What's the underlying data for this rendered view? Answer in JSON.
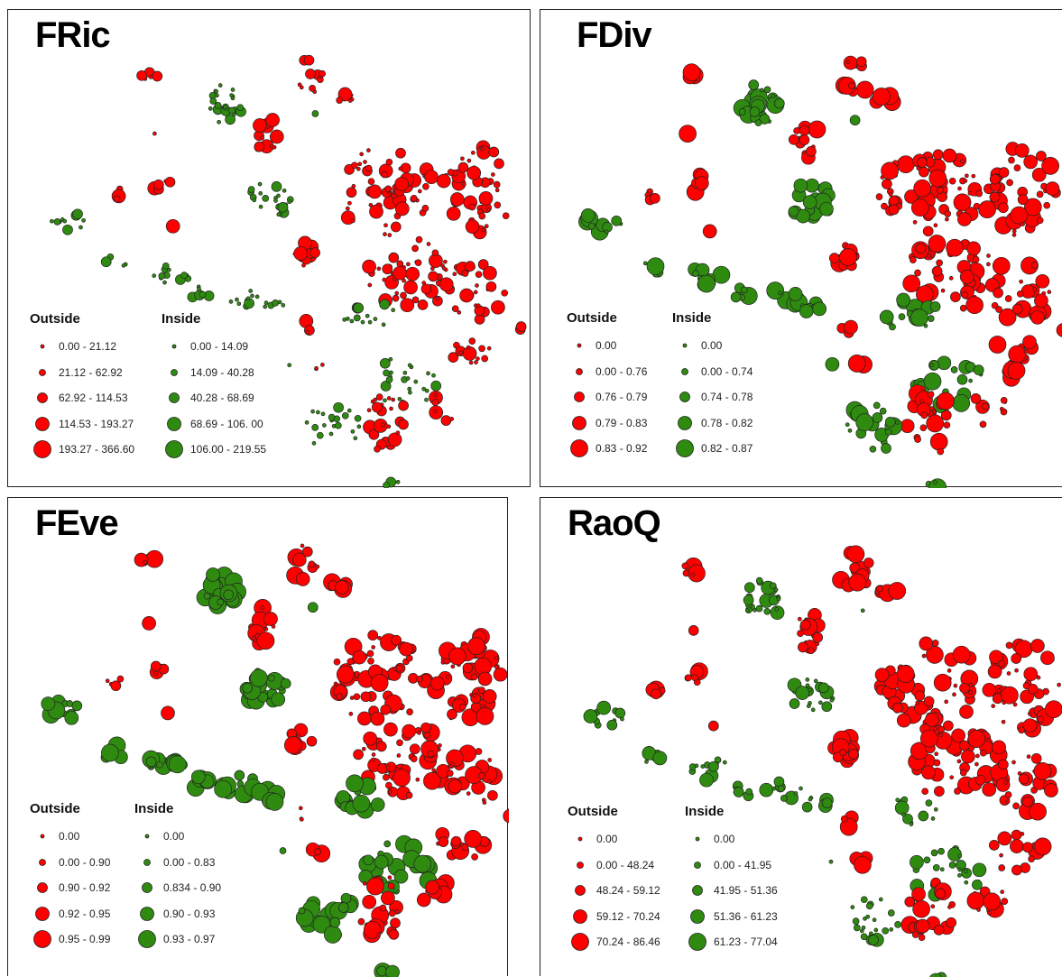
{
  "colors": {
    "outside": "#ff0000",
    "inside": "#2e8b10",
    "stroke": "#222222"
  },
  "panels": [
    {
      "title": "FRic",
      "legend": {
        "outside": {
          "title": "Outside",
          "classes": [
            "0.00 - 21.12",
            "21.12 - 62.92",
            "62.92 - 114.53",
            "114.53 - 193.27",
            "193.27 - 366.60"
          ]
        },
        "inside": {
          "title": "Inside",
          "classes": [
            "0.00 - 14.09",
            "14.09 - 40.28",
            "40.28 - 68.69",
            "68.69 - 106. 00",
            "106.00 - 219.55"
          ]
        }
      }
    },
    {
      "title": "FDiv",
      "legend": {
        "outside": {
          "title": "Outside",
          "classes": [
            "0.00",
            "0.00 - 0.76",
            "0.76 - 0.79",
            "0.79 - 0.83",
            "0.83 - 0.92"
          ]
        },
        "inside": {
          "title": "Inside",
          "classes": [
            "0.00",
            "0.00 - 0.74",
            "0.74 - 0.78",
            "0.78 - 0.82",
            "0.82 - 0.87"
          ]
        }
      }
    },
    {
      "title": "FEve",
      "legend": {
        "outside": {
          "title": "Outside",
          "classes": [
            "0.00",
            "0.00 - 0.90",
            "0.90 - 0.92",
            "0.92 - 0.95",
            "0.95 - 0.99"
          ]
        },
        "inside": {
          "title": "Inside",
          "classes": [
            "0.00",
            "0.00 - 0.83",
            "0.834 - 0.90",
            "0.90 - 0.93",
            "0.93 - 0.97"
          ]
        }
      }
    },
    {
      "title": "RaoQ",
      "legend": {
        "outside": {
          "title": "Outside",
          "classes": [
            "0.00",
            "0.00 - 48.24",
            "48.24 - 59.12",
            "59.12 - 70.24",
            "70.24 - 86.46"
          ]
        },
        "inside": {
          "title": "Inside",
          "classes": [
            "0.00",
            "0.00 - 41.95",
            "41.95 - 51.36",
            "51.36 - 61.23",
            "61.23 - 77.04"
          ]
        }
      }
    }
  ]
}
